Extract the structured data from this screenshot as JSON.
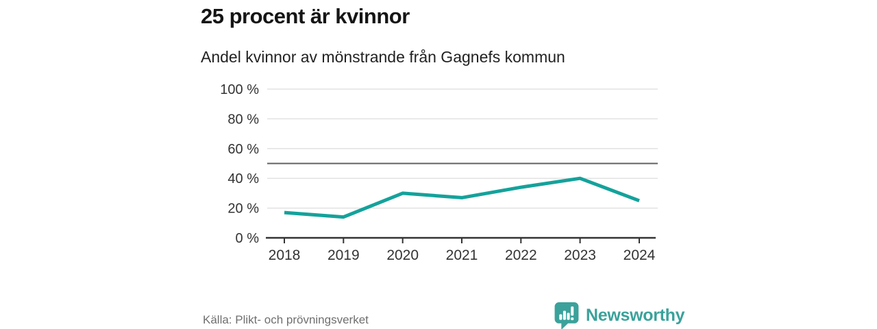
{
  "header": {
    "title": "25 procent är kvinnor",
    "subtitle": "Andel kvinnor av mönstrande från Gagnefs kommun"
  },
  "chart_data": {
    "type": "line",
    "title": "25 procent är kvinnor",
    "subtitle": "Andel kvinnor av mönstrande från Gagnefs kommun",
    "categories": [
      "2018",
      "2019",
      "2020",
      "2021",
      "2022",
      "2023",
      "2024"
    ],
    "series": [
      {
        "name": "Andel kvinnor av mönstrande",
        "values": [
          17,
          14,
          30,
          27,
          34,
          40,
          25
        ]
      }
    ],
    "xlabel": "",
    "ylabel": "",
    "ylim": [
      0,
      100
    ],
    "yticks": [
      {
        "value": 0,
        "label": "0 %"
      },
      {
        "value": 20,
        "label": "20 %"
      },
      {
        "value": 40,
        "label": "40 %"
      },
      {
        "value": 60,
        "label": "60 %"
      },
      {
        "value": 80,
        "label": "80 %"
      },
      {
        "value": 100,
        "label": "100 %"
      }
    ],
    "reference_line": {
      "value": 50
    },
    "grid": true,
    "legend": false,
    "colors": {
      "line": "#14a29b",
      "gridline": "#e2e2e2",
      "reference_line": "#606060",
      "axis": "#333333",
      "tick_label": "#333333"
    }
  },
  "footer": {
    "source": "Källa: Plikt- och prövningsverket",
    "brand": {
      "name": "Newsworthy",
      "color": "#3aa29b",
      "icon": "bar-chart-speech-bubble-icon"
    }
  }
}
